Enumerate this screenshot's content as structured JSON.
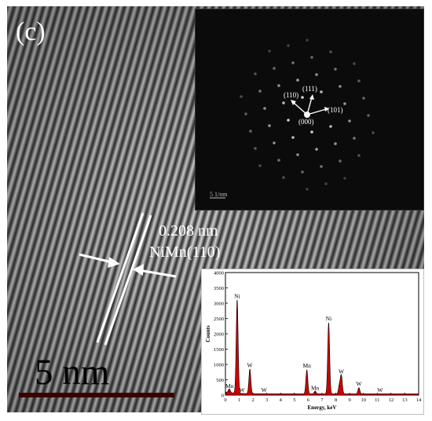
{
  "figure": {
    "panel_label": "(c)",
    "d_spacing": "0.208 nm",
    "plane_label": "NiMn(110)",
    "scale_bar": "5   nm"
  },
  "saed": {
    "scale_label": "5 1/nm",
    "indices": [
      "(111)",
      "(110)",
      "(101)",
      "(000)"
    ]
  },
  "eds": {
    "chart_data": {
      "type": "line",
      "xlabel": "Energy, keV",
      "ylabel": "Counts",
      "xlim": [
        0,
        14
      ],
      "ylim": [
        0,
        4000
      ],
      "x_ticks": [
        "0",
        "1",
        "2",
        "3",
        "4",
        "5",
        "6",
        "7",
        "8",
        "9",
        "10",
        "11",
        "12",
        "13",
        "14"
      ],
      "y_ticks": [
        "0",
        "500",
        "1000",
        "1500",
        "2000",
        "2500",
        "3000",
        "3500",
        "4000"
      ],
      "fill_color": "#cc0000",
      "peaks": [
        {
          "x": 0.28,
          "y": 120
        },
        {
          "x": 0.85,
          "y": 3050
        },
        {
          "x": 1.77,
          "y": 800
        },
        {
          "x": 5.9,
          "y": 780
        },
        {
          "x": 6.5,
          "y": 90
        },
        {
          "x": 7.48,
          "y": 2320
        },
        {
          "x": 8.26,
          "y": 280
        },
        {
          "x": 8.4,
          "y": 590
        },
        {
          "x": 9.67,
          "y": 200
        }
      ],
      "annotations": [
        {
          "text": "Ni",
          "x": 0.85,
          "y": 3120
        },
        {
          "text": "W",
          "x": 1.77,
          "y": 860
        },
        {
          "text": "Mn",
          "x": 0.3,
          "y": 180
        },
        {
          "text": "W",
          "x": 1.2,
          "y": 0
        },
        {
          "text": "W",
          "x": 2.8,
          "y": 0
        },
        {
          "text": "Mn",
          "x": 5.9,
          "y": 840
        },
        {
          "text": "Mn",
          "x": 6.5,
          "y": 110
        },
        {
          "text": "Ni",
          "x": 7.48,
          "y": 2390
        },
        {
          "text": "W",
          "x": 8.4,
          "y": 650
        },
        {
          "text": "W",
          "x": 9.67,
          "y": 260
        },
        {
          "text": "W",
          "x": 11.2,
          "y": 0
        }
      ]
    }
  }
}
